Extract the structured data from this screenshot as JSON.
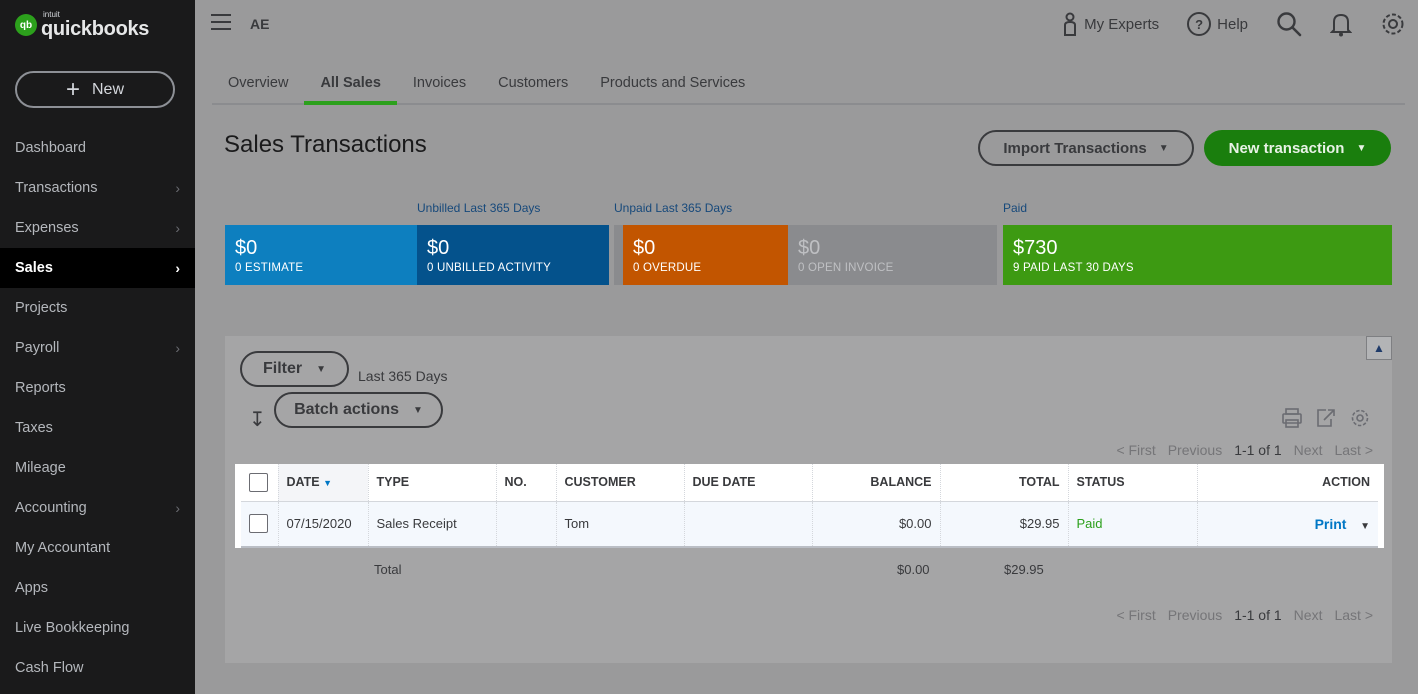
{
  "sidebar": {
    "logo_intuit": "intuit",
    "logo_brand": "quickbooks",
    "logo_badge": "qb",
    "new_label": "New",
    "items": [
      {
        "label": "Dashboard",
        "chevron": false
      },
      {
        "label": "Transactions",
        "chevron": true
      },
      {
        "label": "Expenses",
        "chevron": true
      },
      {
        "label": "Sales",
        "chevron": true,
        "active": true
      },
      {
        "label": "Projects",
        "chevron": false
      },
      {
        "label": "Payroll",
        "chevron": true
      },
      {
        "label": "Reports",
        "chevron": false
      },
      {
        "label": "Taxes",
        "chevron": false
      },
      {
        "label": "Mileage",
        "chevron": false
      },
      {
        "label": "Accounting",
        "chevron": true
      },
      {
        "label": "My Accountant",
        "chevron": false
      },
      {
        "label": "Apps",
        "chevron": false
      },
      {
        "label": "Live Bookkeeping",
        "chevron": false
      },
      {
        "label": "Cash Flow",
        "chevron": false
      }
    ]
  },
  "header": {
    "company": "AE",
    "my_experts": "My Experts",
    "help": "Help",
    "help_glyph": "?"
  },
  "tabs": [
    "Overview",
    "All Sales",
    "Invoices",
    "Customers",
    "Products and Services"
  ],
  "active_tab": "All Sales",
  "page": {
    "title": "Sales Transactions",
    "import_label": "Import Transactions",
    "new_tx_label": "New transaction"
  },
  "money_bar": {
    "labels": {
      "unbilled": "Unbilled Last 365 Days",
      "unpaid": "Unpaid Last 365 Days",
      "paid": "Paid"
    },
    "blocks": [
      {
        "amount": "$0",
        "sub": "0 ESTIMATE",
        "color": "#0d7fbf"
      },
      {
        "amount": "$0",
        "sub": "0 UNBILLED ACTIVITY",
        "color": "#04528c"
      },
      {
        "amount": "$0",
        "sub": "0 OVERDUE",
        "color": "#c25500"
      },
      {
        "amount": "$0",
        "sub": "0 OPEN INVOICE",
        "color": "#8a8b8e"
      },
      {
        "amount": "$730",
        "sub": "9 PAID LAST 30 DAYS",
        "color": "#3d9a12"
      }
    ]
  },
  "filters": {
    "filter_label": "Filter",
    "range": "Last 365 Days",
    "batch_label": "Batch actions"
  },
  "pager": {
    "first": "< First",
    "previous": "Previous",
    "range": "1-1 of 1",
    "next": "Next",
    "last": "Last >"
  },
  "table": {
    "columns": [
      "DATE",
      "TYPE",
      "NO.",
      "CUSTOMER",
      "DUE DATE",
      "BALANCE",
      "TOTAL",
      "STATUS",
      "ACTION"
    ],
    "rows": [
      {
        "date": "07/15/2020",
        "type": "Sales Receipt",
        "no": "",
        "customer": "Tom",
        "due_date": "",
        "balance": "$0.00",
        "total": "$29.95",
        "status": "Paid",
        "action": "Print"
      }
    ],
    "total_label": "Total",
    "total_balance": "$0.00",
    "total_total": "$29.95"
  },
  "colors": {
    "brand_green": "#2ca01c",
    "link_blue": "#0077c5"
  }
}
